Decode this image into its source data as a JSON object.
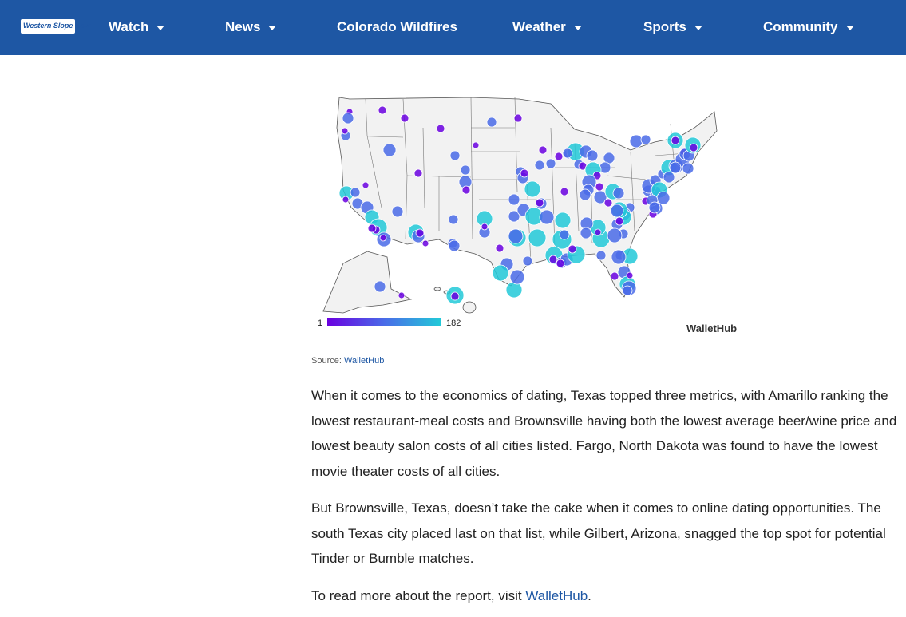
{
  "site": {
    "logo_text": "Western Slope Now"
  },
  "nav": {
    "items": [
      {
        "label": "Watch",
        "dropdown": true
      },
      {
        "label": "News",
        "dropdown": true
      },
      {
        "label": "Colorado Wildfires",
        "dropdown": false
      },
      {
        "label": "Weather",
        "dropdown": true
      },
      {
        "label": "Sports",
        "dropdown": true
      },
      {
        "label": "Community",
        "dropdown": true
      }
    ]
  },
  "map": {
    "legend_min": "1",
    "legend_max": "182",
    "brand": "WalletHub",
    "colors": {
      "low": "#6a00e0",
      "mid": "#4a6be8",
      "high": "#22c9d8",
      "states_fill": "#f2f2f2",
      "states_stroke": "#555555"
    }
  },
  "caption": {
    "prefix": "Source:",
    "link": "WalletHub"
  },
  "article": {
    "p1": "When it comes to the economics of dating, Texas topped three metrics, with Amarillo ranking the lowest restaurant-meal costs and Brownsville having both the lowest average beer/wine price and lowest beauty salon costs of all cities listed. Fargo, North Dakota was found to have the lowest movie theater costs of all cities.",
    "p2": "But Brownsville, Texas, doesn’t take the cake when it comes to online dating opportunities. The south Texas city placed last on that list, while Gilbert, Arizona, snagged the top spot for potential Tinder or Bumble matches.",
    "p3_prefix": "To read more about the report, visit",
    "p3_link": "WalletHub",
    "p3_suffix": "."
  }
}
